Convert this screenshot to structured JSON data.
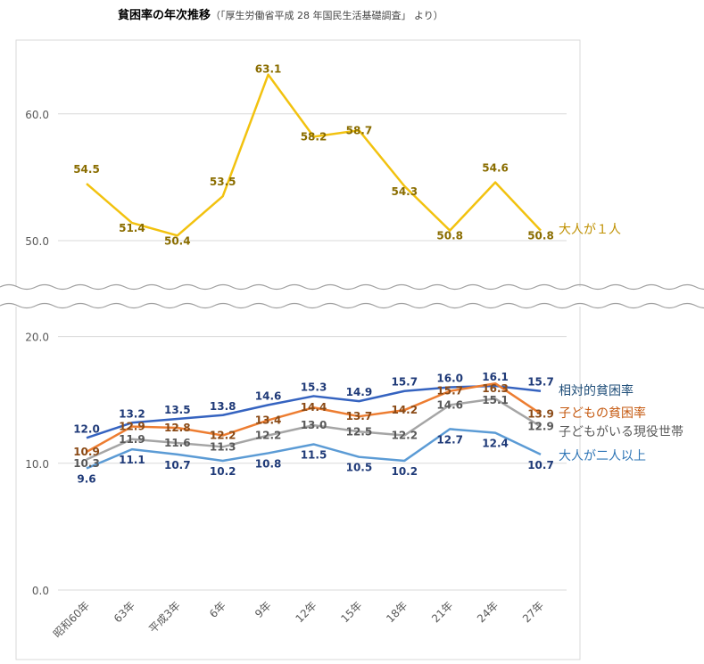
{
  "chart_data": {
    "type": "line",
    "title": "貧困率の年次推移",
    "subtitle": "（「厚生労働省平成 28 年国民生活基礎調査」 より）",
    "categories": [
      "昭和60年",
      "63年",
      "平成3年",
      "6年",
      "9年",
      "12年",
      "15年",
      "18年",
      "21年",
      "24年",
      "27年"
    ],
    "y_ticks_upper": [
      "50.0",
      "60.0"
    ],
    "y_ticks_lower": [
      "0.0",
      "10.0",
      "20.0"
    ],
    "ylim_upper": [
      50,
      60
    ],
    "ylim_lower": [
      0,
      20
    ],
    "axis_break": true,
    "grid": true,
    "legend": "right, labels at line ends",
    "series": [
      {
        "name": "大人が１人",
        "color": "#f2c20f",
        "label_color": "#8a6d00",
        "values": [
          54.5,
          51.4,
          50.4,
          53.5,
          63.1,
          58.2,
          58.7,
          54.3,
          50.8,
          54.6,
          50.8
        ]
      },
      {
        "name": "相対的貧困率",
        "color": "#3563c0",
        "label_color": "#1f3a78",
        "values": [
          12.0,
          13.2,
          13.5,
          13.8,
          14.6,
          15.3,
          14.9,
          15.7,
          16.0,
          16.1,
          15.7
        ]
      },
      {
        "name": "子どもの貧困率",
        "color": "#ed7d31",
        "label_color": "#8a4a16",
        "values": [
          10.9,
          12.9,
          12.8,
          12.2,
          13.4,
          14.4,
          13.7,
          14.2,
          15.7,
          16.3,
          13.9
        ]
      },
      {
        "name": "子どもがいる現役世帯",
        "color": "#a5a5a5",
        "label_color": "#595959",
        "values": [
          10.3,
          11.9,
          11.6,
          11.3,
          12.2,
          13.0,
          12.5,
          12.2,
          14.6,
          15.1,
          12.9
        ]
      },
      {
        "name": "大人が二人以上",
        "color": "#5b9bd5",
        "label_color": "#1f3a78",
        "values": [
          9.6,
          11.1,
          10.7,
          10.2,
          10.8,
          11.5,
          10.5,
          10.2,
          12.7,
          12.4,
          10.7
        ]
      }
    ],
    "legend_colors": [
      "#bf9000",
      "#1f4e79",
      "#c55a11",
      "#595959",
      "#2e75b6"
    ]
  }
}
